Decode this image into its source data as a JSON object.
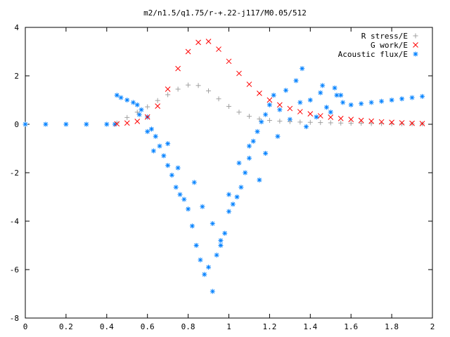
{
  "chart_data": {
    "type": "scatter",
    "title": "m2/n1.5/q1.75/r-+.22-j117/M0.05/512",
    "xlabel": "",
    "ylabel": "",
    "xlim": [
      0,
      2
    ],
    "ylim": [
      -8,
      4
    ],
    "xticks": [
      0,
      0.2,
      0.4,
      0.6,
      0.8,
      1,
      1.2,
      1.4,
      1.6,
      1.8,
      2
    ],
    "xtick_labels": [
      "0",
      "0.2",
      "0.4",
      "0.6",
      "0.8",
      "1",
      "1.2",
      "1.4",
      "1.6",
      "1.8",
      "2"
    ],
    "yticks": [
      -8,
      -6,
      -4,
      -2,
      0,
      2,
      4
    ],
    "ytick_labels": [
      "-8",
      "-6",
      "-4",
      "-2",
      "0",
      "2",
      "4"
    ],
    "grid": false,
    "legend_position": "top-right",
    "series": [
      {
        "name": "R stress/E",
        "marker": "+",
        "color": "#a0a0a0",
        "x": [
          0.45,
          0.5,
          0.55,
          0.6,
          0.65,
          0.7,
          0.75,
          0.8,
          0.85,
          0.9,
          0.95,
          1.0,
          1.05,
          1.1,
          1.15,
          1.2,
          1.25,
          1.3,
          1.35,
          1.4,
          1.45,
          1.5,
          1.55,
          1.6,
          1.65,
          1.7,
          1.75,
          1.8,
          1.85,
          1.9,
          1.95
        ],
        "y": [
          0.05,
          0.28,
          0.5,
          0.72,
          0.98,
          1.22,
          1.45,
          1.62,
          1.6,
          1.38,
          1.05,
          0.74,
          0.5,
          0.33,
          0.22,
          0.16,
          0.13,
          0.11,
          0.09,
          0.08,
          0.07,
          0.06,
          0.05,
          0.04,
          0.04,
          0.03,
          0.03,
          0.02,
          0.02,
          0.02,
          0.02
        ]
      },
      {
        "name": "G work/E",
        "marker": "x",
        "color": "#ff0000",
        "x": [
          0.45,
          0.5,
          0.55,
          0.6,
          0.65,
          0.7,
          0.75,
          0.8,
          0.85,
          0.9,
          0.95,
          1.0,
          1.05,
          1.1,
          1.15,
          1.2,
          1.25,
          1.3,
          1.35,
          1.4,
          1.45,
          1.5,
          1.55,
          1.6,
          1.65,
          1.7,
          1.75,
          1.8,
          1.85,
          1.9,
          1.95
        ],
        "y": [
          0.02,
          0.05,
          0.12,
          0.3,
          0.75,
          1.45,
          2.3,
          3.0,
          3.38,
          3.42,
          3.1,
          2.6,
          2.1,
          1.65,
          1.28,
          1.0,
          0.8,
          0.65,
          0.52,
          0.43,
          0.35,
          0.29,
          0.24,
          0.2,
          0.16,
          0.13,
          0.1,
          0.08,
          0.06,
          0.04,
          0.03
        ]
      },
      {
        "name": "Acoustic flux/E",
        "marker": "*",
        "color": "#0080ff",
        "x": [
          0.0,
          0.1,
          0.2,
          0.3,
          0.4,
          0.44,
          0.45,
          0.47,
          0.5,
          0.53,
          0.55,
          0.57,
          0.6,
          0.62,
          0.64,
          0.66,
          0.68,
          0.7,
          0.72,
          0.74,
          0.76,
          0.78,
          0.8,
          0.82,
          0.84,
          0.86,
          0.88,
          0.9,
          0.92,
          0.94,
          0.96,
          0.98,
          1.0,
          1.02,
          1.04,
          1.06,
          1.08,
          1.1,
          1.12,
          1.14,
          1.16,
          1.18,
          1.2,
          1.22,
          1.25,
          1.28,
          1.3,
          1.33,
          1.36,
          1.4,
          1.43,
          1.46,
          1.5,
          1.53,
          1.56,
          1.6,
          1.65,
          1.7,
          1.75,
          1.8,
          1.85,
          1.9,
          1.95,
          0.56,
          0.6,
          0.63,
          0.7,
          0.75,
          0.83,
          0.87,
          0.92,
          0.96,
          1.0,
          1.05,
          1.1,
          1.15,
          1.18,
          1.24,
          1.35,
          1.38,
          1.45,
          1.48,
          1.52,
          1.55
        ],
        "y": [
          0.0,
          0.0,
          0.0,
          0.0,
          0.0,
          0.0,
          1.2,
          1.1,
          1.0,
          0.9,
          0.8,
          0.6,
          0.3,
          -0.2,
          -0.5,
          -0.9,
          -1.3,
          -1.7,
          -2.1,
          -2.6,
          -2.9,
          -3.1,
          -3.5,
          -4.2,
          -5.0,
          -5.6,
          -6.2,
          -5.9,
          -6.9,
          -5.4,
          -5.0,
          -4.5,
          -3.6,
          -3.3,
          -3.0,
          -2.6,
          -2.0,
          -1.4,
          -0.7,
          -0.3,
          0.1,
          0.4,
          0.8,
          1.2,
          0.6,
          1.4,
          0.2,
          1.8,
          2.3,
          1.0,
          0.3,
          1.6,
          0.5,
          1.2,
          0.9,
          0.8,
          0.85,
          0.9,
          0.95,
          1.0,
          1.05,
          1.1,
          1.15,
          0.4,
          -0.3,
          -1.1,
          -0.8,
          -1.8,
          -2.4,
          -3.4,
          -4.1,
          -4.8,
          -2.9,
          -1.6,
          -0.9,
          -2.3,
          -1.2,
          -0.5,
          0.9,
          -0.1,
          1.3,
          0.7,
          1.5,
          1.2
        ]
      }
    ]
  }
}
